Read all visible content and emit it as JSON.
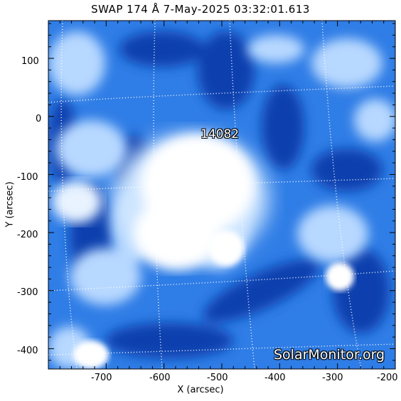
{
  "title": "SWAP 174 Å  7-May-2025 03:32:01.613",
  "axes": {
    "xlabel": "X (arcsec)",
    "ylabel": "Y (arcsec)",
    "xlim": [
      -800,
      -200
    ],
    "ylim": [
      -435,
      165
    ],
    "x_ticks": [
      "-700",
      "-600",
      "-500",
      "-400",
      "-300",
      "-200"
    ],
    "y_ticks": [
      "100",
      "0",
      "-100",
      "-200",
      "-300",
      "-400"
    ]
  },
  "region_label": "14082",
  "watermark": "SolarMonitor.org",
  "colors": {
    "dark": "#0a3da8",
    "mid": "#2f7de6",
    "light": "#b7d8ff",
    "bright": "#ffffff",
    "grid": "#ffffff"
  }
}
